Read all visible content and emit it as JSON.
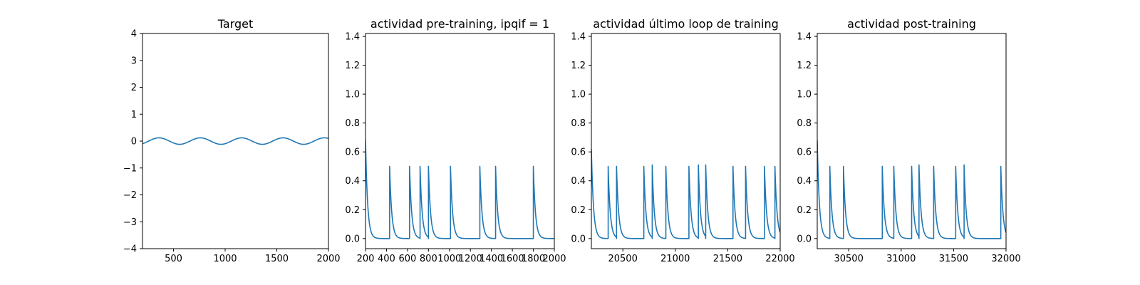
{
  "chart_data": [
    {
      "type": "line",
      "title": "Target",
      "xlabel": "",
      "ylabel": "",
      "xlim": [
        200,
        2000
      ],
      "ylim": [
        -4,
        4
      ],
      "xticks": [
        500,
        1000,
        1500,
        2000
      ],
      "xtick_labels": [
        "500",
        "1000",
        "1500",
        "2000"
      ],
      "yticks": [
        -4,
        -3,
        -2,
        -1,
        0,
        1,
        2,
        3,
        4
      ],
      "ytick_labels": [
        "−4",
        "−3",
        "−2",
        "−1",
        "0",
        "1",
        "2",
        "3",
        "4"
      ],
      "grid": false,
      "series": [
        {
          "color": "#1f77b4",
          "kind": "sine",
          "amplitude": 0.12,
          "period": 400,
          "peak_x": 360,
          "x_range": [
            200,
            2000
          ]
        }
      ]
    },
    {
      "type": "line",
      "title": "actividad pre-training, ipqif = 1",
      "xlabel": "",
      "ylabel": "",
      "xlim": [
        200,
        2000
      ],
      "ylim": [
        -0.07,
        1.42
      ],
      "xticks": [
        200,
        400,
        600,
        800,
        1000,
        1200,
        1400,
        1600,
        1800,
        2000
      ],
      "xtick_labels": [
        "200",
        "400",
        "600",
        "800",
        "1000",
        "1200",
        "1400",
        "1600",
        "1800",
        "2000"
      ],
      "yticks": [
        0.0,
        0.2,
        0.4,
        0.6,
        0.8,
        1.0,
        1.2,
        1.4
      ],
      "ytick_labels": [
        "0.0",
        "0.2",
        "0.4",
        "0.6",
        "0.8",
        "1.0",
        "1.2",
        "1.4"
      ],
      "grid": false,
      "series": [
        {
          "color": "#1f77b4",
          "kind": "spike_decay",
          "x_range": [
            200,
            2000
          ],
          "initial_value": 0.68,
          "decay_tau": 20,
          "spike_times": [
            430,
            620,
            720,
            800,
            1010,
            1290,
            1440,
            1800
          ],
          "spike_heights": [
            0.5,
            0.5,
            0.5,
            0.5,
            0.5,
            0.5,
            0.5,
            0.5
          ]
        }
      ]
    },
    {
      "type": "line",
      "title": "actividad último loop de training",
      "xlabel": "",
      "ylabel": "",
      "xlim": [
        20200,
        22000
      ],
      "ylim": [
        -0.07,
        1.42
      ],
      "xticks": [
        20500,
        21000,
        21500,
        22000
      ],
      "xtick_labels": [
        "20500",
        "21000",
        "21500",
        "22000"
      ],
      "yticks": [
        0.0,
        0.2,
        0.4,
        0.6,
        0.8,
        1.0,
        1.2,
        1.4
      ],
      "ytick_labels": [
        "0.0",
        "0.2",
        "0.4",
        "0.6",
        "0.8",
        "1.0",
        "1.2",
        "1.4"
      ],
      "grid": false,
      "series": [
        {
          "color": "#1f77b4",
          "kind": "spike_decay",
          "x_range": [
            20200,
            22000
          ],
          "initial_value": 0.62,
          "decay_tau": 20,
          "spike_times": [
            20360,
            20440,
            20700,
            20780,
            20910,
            21130,
            21220,
            21290,
            21550,
            21670,
            21850,
            21950
          ],
          "spike_heights": [
            0.5,
            0.5,
            0.5,
            0.51,
            0.5,
            0.5,
            0.51,
            0.51,
            0.5,
            0.5,
            0.5,
            0.5
          ]
        }
      ]
    },
    {
      "type": "line",
      "title": "actividad post-training",
      "xlabel": "",
      "ylabel": "",
      "xlim": [
        30200,
        32000
      ],
      "ylim": [
        -0.07,
        1.42
      ],
      "xticks": [
        30500,
        31000,
        31500,
        32000
      ],
      "xtick_labels": [
        "30500",
        "31000",
        "31500",
        "32000"
      ],
      "yticks": [
        0.0,
        0.2,
        0.4,
        0.6,
        0.8,
        1.0,
        1.2,
        1.4
      ],
      "ytick_labels": [
        "0.0",
        "0.2",
        "0.4",
        "0.6",
        "0.8",
        "1.0",
        "1.2",
        "1.4"
      ],
      "grid": false,
      "series": [
        {
          "color": "#1f77b4",
          "kind": "spike_decay",
          "x_range": [
            30200,
            32000
          ],
          "initial_value": 0.68,
          "decay_tau": 20,
          "spike_times": [
            30320,
            30450,
            30820,
            30930,
            31100,
            31170,
            31310,
            31520,
            31600,
            31950
          ],
          "spike_heights": [
            0.5,
            0.5,
            0.5,
            0.5,
            0.5,
            0.51,
            0.5,
            0.5,
            0.51,
            0.5
          ]
        }
      ]
    }
  ]
}
